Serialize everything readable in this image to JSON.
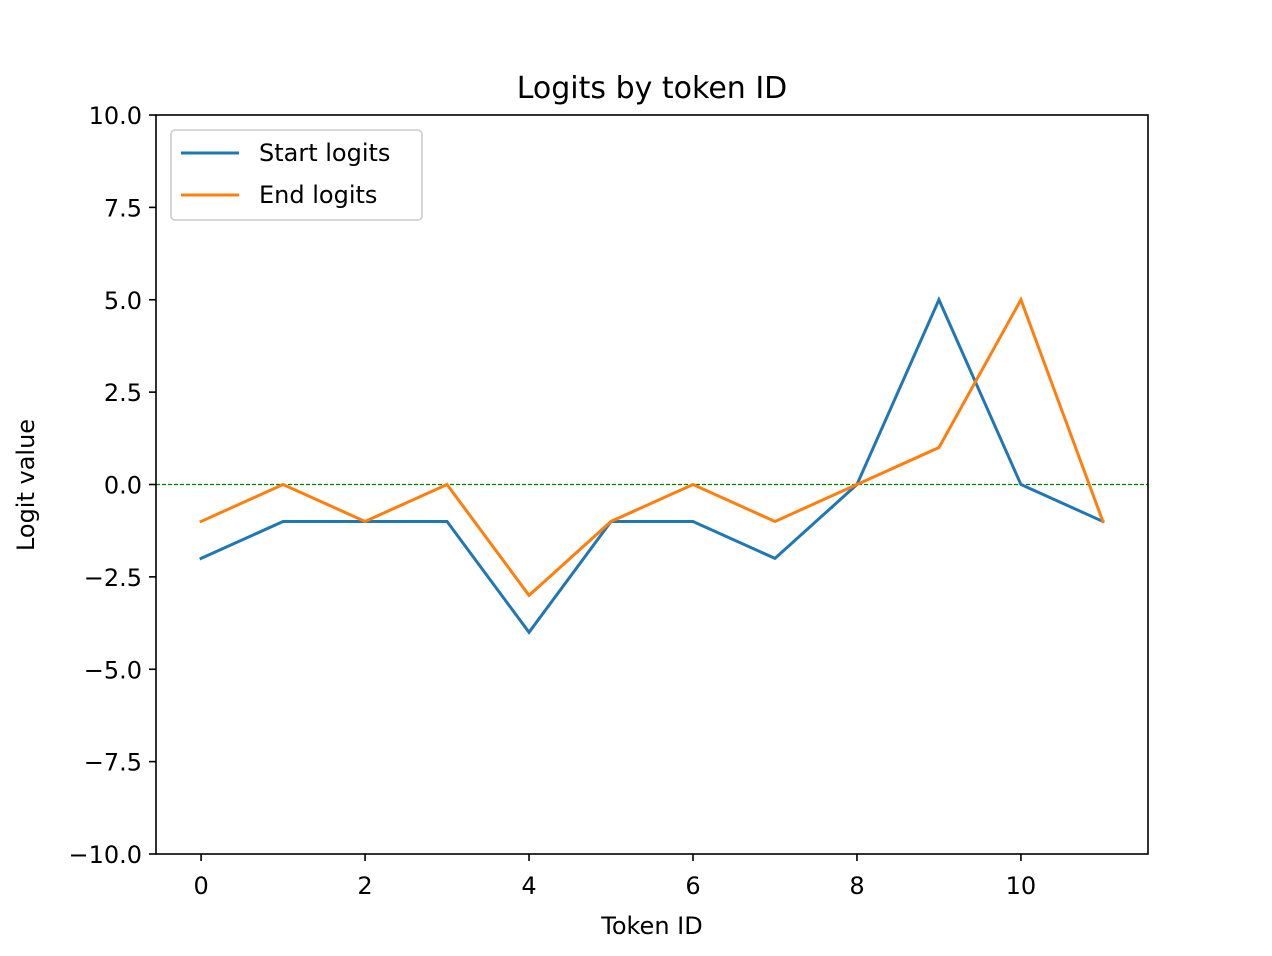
{
  "chart_data": {
    "type": "line",
    "title": "Logits by token ID",
    "xlabel": "Token ID",
    "ylabel": "Logit value",
    "x": [
      0,
      1,
      2,
      3,
      4,
      5,
      6,
      7,
      8,
      9,
      10,
      11
    ],
    "xlim": [
      -0.55,
      11.55
    ],
    "ylim": [
      -10,
      10
    ],
    "xticks": [
      0,
      2,
      4,
      6,
      8,
      10
    ],
    "xtick_labels": [
      "0",
      "2",
      "4",
      "6",
      "8",
      "10"
    ],
    "yticks": [
      -10,
      -7.5,
      -5,
      -2.5,
      0,
      2.5,
      5,
      7.5,
      10
    ],
    "ytick_labels": [
      "−10.0",
      "−7.5",
      "−5.0",
      "−2.5",
      "0.0",
      "2.5",
      "5.0",
      "7.5",
      "10.0"
    ],
    "series": [
      {
        "name": "Start logits",
        "color": "#1f77b4",
        "values": [
          -2,
          -1,
          -1,
          -1,
          -4,
          -1,
          -1,
          -2,
          0,
          5,
          0,
          -1
        ]
      },
      {
        "name": "End logits",
        "color": "#ff7f0e",
        "values": [
          -1,
          0,
          -1,
          0,
          -3,
          -1,
          0,
          -1,
          0,
          1,
          5,
          -1
        ]
      }
    ],
    "reference_line": {
      "y": 0,
      "color": "#008000",
      "style": "dashed"
    },
    "grid": false,
    "legend_position": "upper-left"
  }
}
